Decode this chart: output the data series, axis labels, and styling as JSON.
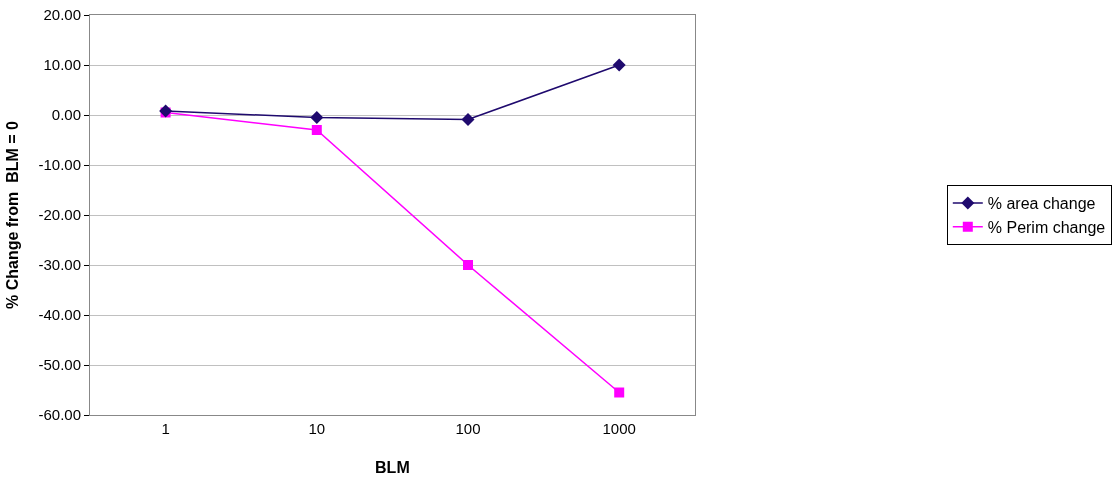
{
  "chart_data": {
    "type": "line",
    "xlabel": "BLM",
    "ylabel": "% Change from  BLM = 0",
    "categories": [
      "1",
      "10",
      "100",
      "1000"
    ],
    "series": [
      {
        "name": "% area change",
        "color": "#1f0a6e",
        "marker": "diamond",
        "values": [
          0.8,
          -0.5,
          -0.9,
          10.0
        ]
      },
      {
        "name": "% Perim change",
        "color": "#ff00ff",
        "marker": "square",
        "values": [
          0.5,
          -3.0,
          -30.0,
          -55.5
        ]
      }
    ],
    "ylim": [
      -60,
      20
    ],
    "yticks": [
      {
        "value": -60,
        "label": "-60.00"
      },
      {
        "value": -50,
        "label": "-50.00"
      },
      {
        "value": -40,
        "label": "-40.00"
      },
      {
        "value": -30,
        "label": "-30.00"
      },
      {
        "value": -20,
        "label": "-20.00"
      },
      {
        "value": -10,
        "label": "-10.00"
      },
      {
        "value": 0,
        "label": "0.00"
      },
      {
        "value": 10,
        "label": "10.00"
      },
      {
        "value": 20,
        "label": "20.00"
      }
    ],
    "grid": "y",
    "legend": "right",
    "line_style": "solid"
  }
}
